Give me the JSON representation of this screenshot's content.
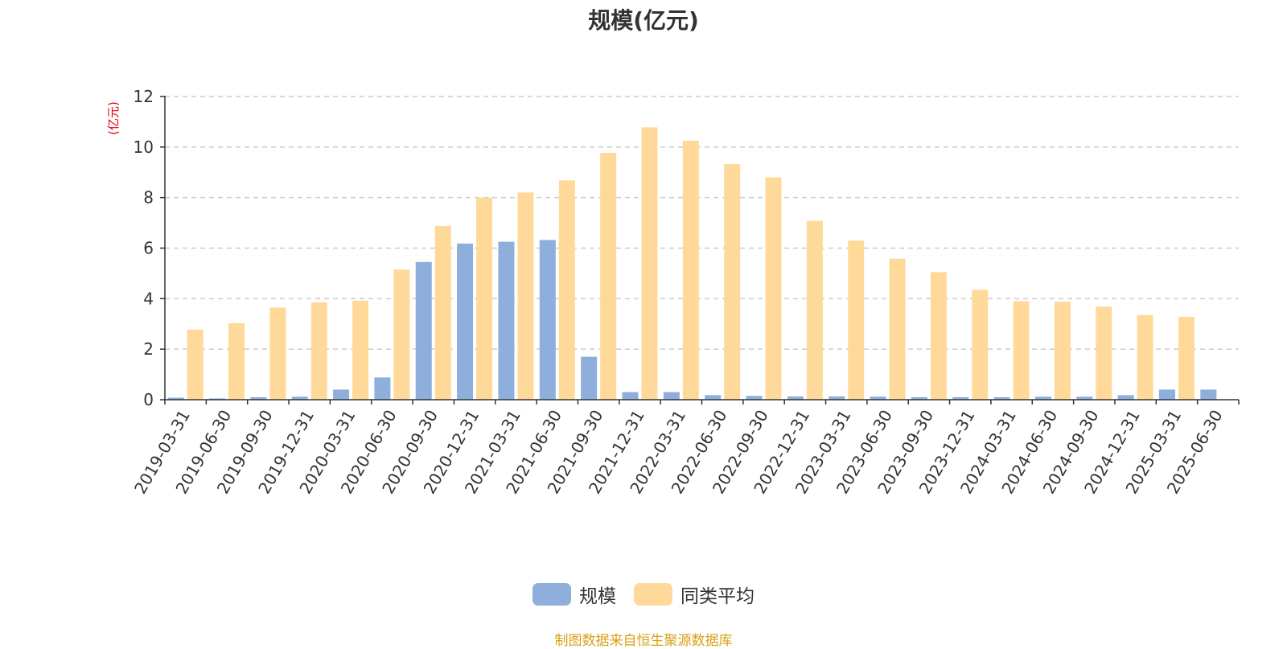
{
  "chart_data": {
    "type": "bar",
    "title": "规模(亿元)",
    "ylabel": "(亿元)",
    "xlabel": "",
    "ylim": [
      0,
      12
    ],
    "yticks": [
      0,
      2,
      4,
      6,
      8,
      10,
      12
    ],
    "grid": "horizontal dashed",
    "legend_position": "bottom-center",
    "categories": [
      "2019-03-31",
      "2019-06-30",
      "2019-09-30",
      "2019-12-31",
      "2020-03-31",
      "2020-06-30",
      "2020-09-30",
      "2020-12-31",
      "2021-03-31",
      "2021-06-30",
      "2021-09-30",
      "2021-12-31",
      "2022-03-31",
      "2022-06-30",
      "2022-09-30",
      "2022-12-31",
      "2023-03-31",
      "2023-06-30",
      "2023-09-30",
      "2023-12-31",
      "2024-03-31",
      "2024-06-30",
      "2024-09-30",
      "2024-12-31",
      "2025-03-31",
      "2025-06-30"
    ],
    "series": [
      {
        "name": "规模",
        "color": "#8eaedc",
        "values": [
          0.08,
          0.05,
          0.1,
          0.12,
          0.4,
          0.88,
          5.45,
          6.18,
          6.25,
          6.32,
          1.7,
          0.3,
          0.3,
          0.18,
          0.15,
          0.13,
          0.13,
          0.12,
          0.1,
          0.1,
          0.1,
          0.12,
          0.12,
          0.18,
          0.4,
          0.4
        ]
      },
      {
        "name": "同类平均",
        "color": "#ffd99a",
        "values": [
          2.77,
          3.03,
          3.65,
          3.85,
          3.92,
          5.15,
          6.88,
          8.0,
          8.2,
          8.68,
          9.77,
          10.78,
          10.25,
          9.33,
          8.8,
          7.08,
          6.3,
          5.58,
          5.05,
          4.35,
          3.9,
          3.88,
          3.68,
          3.35,
          3.28,
          null
        ]
      }
    ]
  },
  "source_note": "制图数据来自恒生聚源数据库",
  "colors": {
    "accent_source": "#d9a017",
    "axis": "#333333",
    "grid": "#cccccc"
  }
}
